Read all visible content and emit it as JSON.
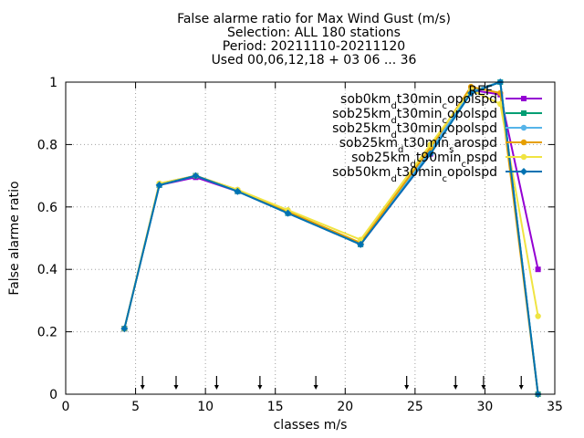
{
  "chart_data": {
    "type": "line",
    "title_lines": [
      "False alarme ratio  for Max Wind Gust (m/s)",
      "Selection: ALL    180 stations",
      "Period: 20211110-20211120",
      "Used 00,06,12,18 + 03 06 ... 36"
    ],
    "xlabel": "classes m/s",
    "ylabel": "False alarme ratio",
    "xlim": [
      0,
      35
    ],
    "ylim": [
      0,
      1
    ],
    "xticks": [
      0,
      5,
      10,
      15,
      20,
      25,
      30,
      35
    ],
    "yticks": [
      0,
      0.2,
      0.4,
      0.6,
      0.8,
      1
    ],
    "grid": true,
    "legend_position": "top-right",
    "legend_header": "REF",
    "class_markers_x": [
      5.5,
      7.9,
      10.8,
      13.9,
      17.9,
      24.4,
      27.9,
      29.9,
      32.6
    ],
    "series": [
      {
        "name_parts": [
          [
            "sob0km",
            ""
          ],
          [
            "d",
            "sub"
          ],
          [
            "t30min",
            ""
          ],
          [
            "c",
            "sub"
          ],
          [
            "opolspd",
            ""
          ]
        ],
        "color": "#9400d3",
        "marker": "square",
        "x": [
          4.2,
          6.7,
          9.3,
          12.3,
          15.9,
          21.1,
          26.1,
          29.0,
          31.1,
          33.8
        ],
        "y": [
          0.21,
          0.67,
          0.695,
          0.65,
          0.58,
          0.48,
          0.77,
          0.975,
          0.96,
          0.4
        ]
      },
      {
        "name_parts": [
          [
            "sob25km",
            ""
          ],
          [
            "d",
            "sub"
          ],
          [
            "t30min",
            ""
          ],
          [
            "c",
            "sub"
          ],
          [
            "opolspd",
            ""
          ]
        ],
        "color": "#009e73",
        "marker": "square",
        "x": [
          4.2,
          6.7,
          9.3,
          12.3,
          15.9,
          21.1,
          26.1,
          29.0,
          31.1,
          33.8
        ],
        "y": [
          0.21,
          0.67,
          0.7,
          0.65,
          0.58,
          0.48,
          0.78,
          0.97,
          1.0,
          0.0
        ]
      },
      {
        "name_parts": [
          [
            "sob25km",
            ""
          ],
          [
            "d",
            "sub"
          ],
          [
            "t30min",
            ""
          ],
          [
            "c",
            "sub"
          ],
          [
            "opolspd",
            ""
          ]
        ],
        "color": "#56b4e9",
        "marker": "circle",
        "x": [
          4.2,
          6.7,
          9.3,
          12.3,
          15.9,
          21.1,
          26.1,
          29.0,
          31.1,
          33.8
        ],
        "y": [
          0.21,
          0.67,
          0.7,
          0.65,
          0.58,
          0.48,
          0.78,
          0.97,
          1.0,
          0.0
        ]
      },
      {
        "name_parts": [
          [
            "sob25km",
            ""
          ],
          [
            "d",
            "sub"
          ],
          [
            "t30min",
            ""
          ],
          [
            "s",
            "sub"
          ],
          [
            "arospd",
            ""
          ]
        ],
        "color": "#e69f00",
        "marker": "circle",
        "x": [
          4.2,
          6.7,
          9.3,
          12.3,
          15.9,
          21.1,
          26.1,
          29.0,
          31.1,
          33.8
        ],
        "y": [
          0.21,
          0.675,
          0.7,
          0.655,
          0.585,
          0.485,
          0.79,
          0.985,
          0.965,
          0.0
        ]
      },
      {
        "name_parts": [
          [
            "sob25km",
            ""
          ],
          [
            "d",
            "sub"
          ],
          [
            "t90min",
            ""
          ],
          [
            "c",
            "sub"
          ],
          [
            "pspd",
            ""
          ]
        ],
        "color": "#f0e442",
        "marker": "circle",
        "x": [
          4.2,
          6.7,
          9.3,
          12.3,
          15.9,
          21.1,
          26.1,
          29.0,
          31.1,
          33.8
        ],
        "y": [
          0.21,
          0.675,
          0.7,
          0.655,
          0.59,
          0.495,
          0.8,
          0.975,
          0.93,
          0.25
        ]
      },
      {
        "name_parts": [
          [
            "sob50km",
            ""
          ],
          [
            "d",
            "sub"
          ],
          [
            "t30min",
            ""
          ],
          [
            "c",
            "sub"
          ],
          [
            "opolspd",
            ""
          ]
        ],
        "color": "#0072b2",
        "marker": "diamond",
        "x": [
          4.2,
          6.7,
          9.3,
          12.3,
          15.9,
          21.1,
          26.1,
          29.0,
          31.1,
          33.8
        ],
        "y": [
          0.21,
          0.67,
          0.7,
          0.65,
          0.58,
          0.48,
          0.77,
          0.965,
          1.0,
          0.0
        ]
      }
    ]
  }
}
